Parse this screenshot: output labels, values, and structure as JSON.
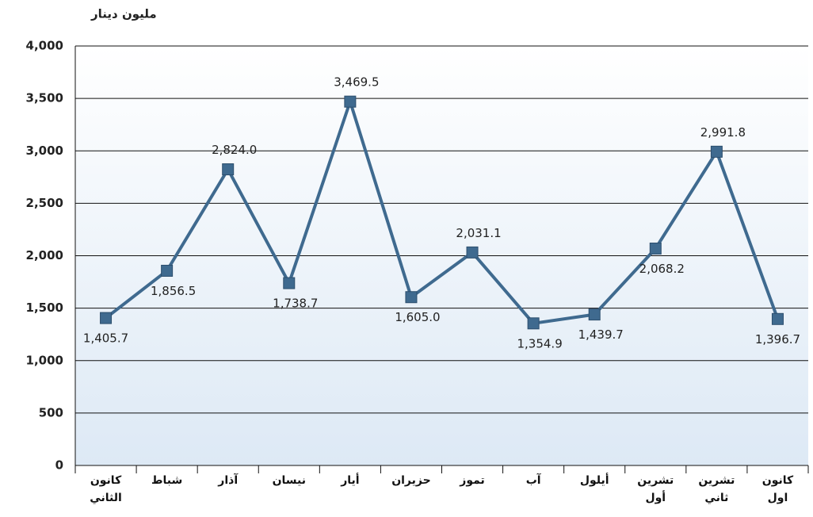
{
  "chart_data": {
    "type": "line",
    "y_axis_label": "مليون دينار",
    "categories": [
      "كانون\nالثاني",
      "شباط",
      "آذار",
      "نيسان",
      "أيار",
      "حزيران",
      "تموز",
      "آب",
      "أيلول",
      "تشرين\nأول",
      "تشرين\nثاني",
      "كانون\nاول"
    ],
    "values": [
      1405.7,
      1856.5,
      2824.0,
      1738.7,
      3469.5,
      1605.0,
      2031.1,
      1354.9,
      1439.7,
      2068.2,
      2991.8,
      1396.7
    ],
    "value_labels": [
      "1,405.7",
      "1,856.5",
      "2,824.0",
      "1,738.7",
      "3,469.5",
      "1,605.0",
      "2,031.1",
      "1,354.9",
      "1,439.7",
      "2,068.2",
      "2,991.8",
      "1,396.7"
    ],
    "color": "#3f6a8f",
    "ylim": [
      0,
      4000
    ],
    "yticks": [
      0,
      500,
      {
        "value": 1000,
        "label": "1,000"
      },
      {
        "value": 1500,
        "label": "1,500"
      },
      {
        "value": 2000,
        "label": "2,000"
      },
      {
        "value": 2500,
        "label": "2,500"
      },
      {
        "value": 3000,
        "label": "3,000"
      },
      {
        "value": 3500,
        "label": "3,500"
      },
      {
        "value": 4000,
        "label": "4,000"
      }
    ],
    "grid": true
  }
}
